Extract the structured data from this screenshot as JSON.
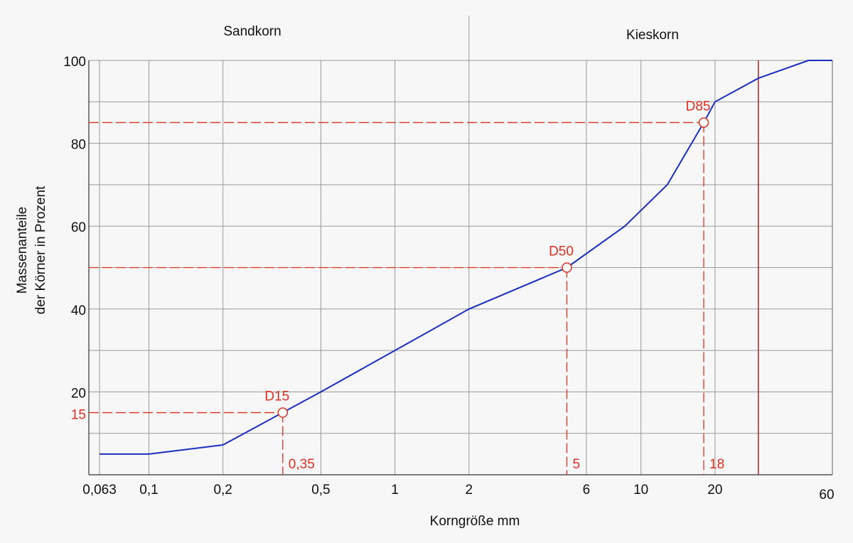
{
  "chart_data": {
    "type": "line",
    "header": [
      "Sandkorn",
      "Kieskorn"
    ],
    "divider": 2,
    "boundary": 30,
    "ylabel": [
      "Massenanteile",
      "der Körner in Prozent"
    ],
    "xlabel": "Korngröße mm",
    "xscale": "log",
    "xlim": [
      0.057,
      60
    ],
    "ylim": [
      0,
      100
    ],
    "xticks": [
      {
        "value": 0.063,
        "label": "0,063"
      },
      {
        "value": 0.1,
        "label": "0,1"
      },
      {
        "value": 0.2,
        "label": "0,2"
      },
      {
        "value": 0.5,
        "label": "0,5"
      },
      1,
      2,
      6,
      10,
      20,
      60
    ],
    "yticks": [
      20,
      40,
      60,
      80,
      100
    ],
    "minor_yticks": [
      10,
      30,
      50,
      70,
      90
    ],
    "grid": true,
    "series": [
      {
        "color": "#1a2fbf",
        "x": [
          0.063,
          0.1,
          0.2,
          0.5,
          1,
          2,
          5,
          8.6,
          12.8,
          18,
          20,
          30,
          48,
          60
        ],
        "values": [
          5,
          5,
          7.2,
          20,
          30,
          40,
          50,
          60,
          70,
          85,
          90,
          95.7,
          100,
          100
        ]
      }
    ],
    "markers": [
      {
        "label": "D15",
        "x": 0.35,
        "y": 15,
        "x_label": "0,35",
        "y_label": "15"
      },
      {
        "label": "D50",
        "x": 5,
        "y": 50,
        "x_label": "5"
      },
      {
        "label": "D85",
        "x": 18,
        "y": 85,
        "x_label": "18"
      }
    ],
    "marker_color": "#e03020"
  }
}
